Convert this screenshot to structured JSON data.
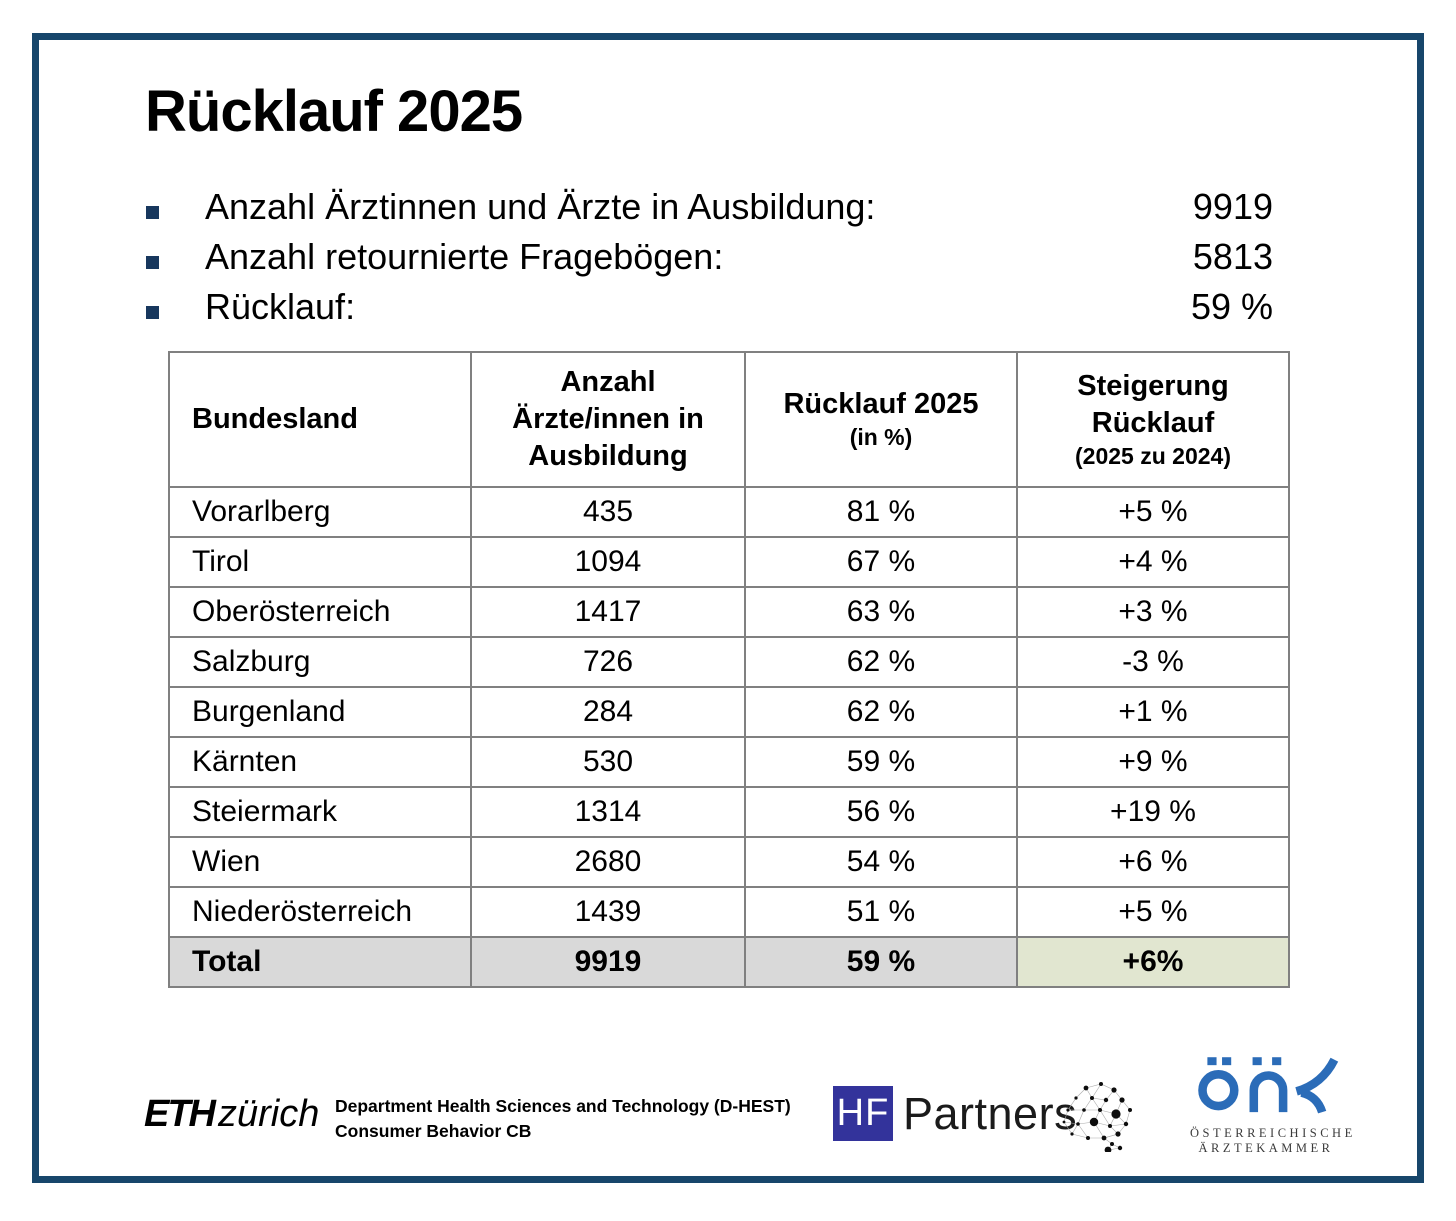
{
  "title": "Rücklauf 2025",
  "bullets": [
    {
      "label": "Anzahl Ärztinnen und Ärzte in Ausbildung:",
      "value": "9919"
    },
    {
      "label": "Anzahl retournierte Fragebögen:",
      "value": "5813"
    },
    {
      "label": "Rücklauf:",
      "value": "59 %"
    }
  ],
  "table": {
    "columns": [
      {
        "lines": [
          {
            "text": "Bundesland",
            "small": false
          }
        ],
        "align": "left"
      },
      {
        "lines": [
          {
            "text": "Anzahl",
            "small": false
          },
          {
            "text": "Ärzte/innen in",
            "small": false
          },
          {
            "text": "Ausbildung",
            "small": false
          }
        ],
        "align": "center"
      },
      {
        "lines": [
          {
            "text": "Rücklauf 2025",
            "small": false
          },
          {
            "text": "(in %)",
            "small": true
          }
        ],
        "align": "center"
      },
      {
        "lines": [
          {
            "text": "Steigerung",
            "small": false
          },
          {
            "text": "Rücklauf",
            "small": false
          },
          {
            "text": "(2025 zu 2024)",
            "small": true
          }
        ],
        "align": "center"
      }
    ],
    "rows": [
      {
        "cells": [
          "Vorarlberg",
          "435",
          "81 %",
          "+5 %"
        ],
        "steigerung_bg": "light",
        "total": false
      },
      {
        "cells": [
          "Tirol",
          "1094",
          "67 %",
          "+4 %"
        ],
        "steigerung_bg": "light",
        "total": false
      },
      {
        "cells": [
          "Oberösterreich",
          "1417",
          "63 %",
          "+3 %"
        ],
        "steigerung_bg": "light",
        "total": false
      },
      {
        "cells": [
          "Salzburg",
          "726",
          "62 %",
          "-3 %"
        ],
        "steigerung_bg": "none",
        "total": false
      },
      {
        "cells": [
          "Burgenland",
          "284",
          "62 %",
          "+1 %"
        ],
        "steigerung_bg": "light",
        "total": false
      },
      {
        "cells": [
          "Kärnten",
          "530",
          "59 %",
          "+9 %"
        ],
        "steigerung_bg": "light",
        "total": false
      },
      {
        "cells": [
          "Steiermark",
          "1314",
          "56 %",
          "+19 %"
        ],
        "steigerung_bg": "medium",
        "total": false
      },
      {
        "cells": [
          "Wien",
          "2680",
          "54 %",
          "+6 %"
        ],
        "steigerung_bg": "light",
        "total": false
      },
      {
        "cells": [
          "Niederösterreich",
          "1439",
          "51 %",
          "+5 %"
        ],
        "steigerung_bg": "light",
        "total": false
      },
      {
        "cells": [
          "Total",
          "9919",
          "59 %",
          "+6%"
        ],
        "steigerung_bg": "light",
        "total": true
      }
    ]
  },
  "footer": {
    "eth": {
      "bold": "ETH",
      "light": "zürich"
    },
    "department_line1": "Department Health Sciences and Technology (D-HEST)",
    "department_line2": "Consumer Behavior CB",
    "hf_partners": {
      "square_label": "HF",
      "wordmark": "Partners"
    },
    "oak": {
      "caption_line1": "ÖSTERREICHISCHE",
      "caption_line2": "ÄRZTEKAMMER"
    }
  },
  "colors": {
    "frame_border": "#17466B",
    "bullet_square": "#17375D",
    "green_light": "#E1E6D0",
    "green_medium": "#B7CB99",
    "total_gray": "#D9D9D9",
    "table_border": "#808080",
    "hf_square": "#33339B",
    "oak_blue": "#2B6CB8"
  }
}
